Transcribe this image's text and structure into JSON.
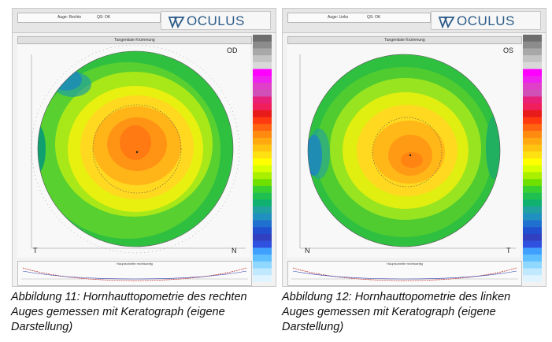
{
  "left_panel": {
    "eye_label": "Auge: Rechts",
    "eye_id": "QS: OK",
    "logo": "OCULUS",
    "map_title": "Tangentiale Krümmung",
    "eye_code": "OD",
    "corner_left": "T",
    "corner_right": "N",
    "profile_title": "Hauptschnitte rechtsseitig"
  },
  "right_panel": {
    "eye_label": "Auge: Links",
    "eye_id": "QS: OK",
    "logo": "OCULUS",
    "map_title": "Tangentiale Krümmung",
    "eye_code": "OS",
    "corner_left": "N",
    "corner_right": "T",
    "profile_title": "Hauptschnitte rechtsseitig"
  },
  "captions": {
    "left": "Abbildung 11: Hornhauttopometrie des rechten Auges gemessen mit Keratograph (eigene Darstellung)",
    "right": "Abbildung 12: Hornhauttopometrie des linken Auges gemessen mit Keratograph (eigene Darstellung)"
  },
  "colors": {
    "scale": [
      "#6e6e6e",
      "#8c8c8c",
      "#a8a8a8",
      "#c4c4c4",
      "#d8d8d8",
      "#ff00ff",
      "#ee22ee",
      "#e040c8",
      "#d050b8",
      "#e8207a",
      "#f01e5a",
      "#e81a1a",
      "#ff3a10",
      "#ff6410",
      "#ff8a10",
      "#ffa810",
      "#ffc410",
      "#ffe010",
      "#ffff00",
      "#d8ff00",
      "#a8f000",
      "#70e000",
      "#38d030",
      "#20c050",
      "#10b070",
      "#20a0a0",
      "#2090c0",
      "#2070d0",
      "#2050d0",
      "#3040c0",
      "#3050e0",
      "#40a0ff",
      "#60c0ff",
      "#90d8ff",
      "#c0e8ff",
      "#e0f4ff"
    ]
  }
}
